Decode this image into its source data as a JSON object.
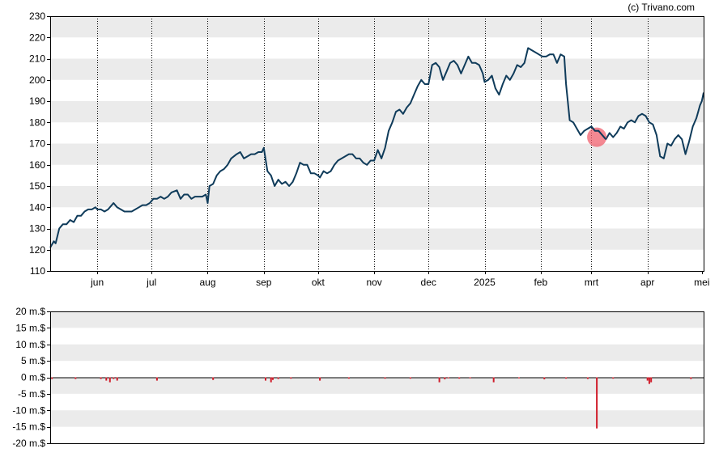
{
  "credit": "(c) Trivano.com",
  "colors": {
    "price_line": "#0f3b5a",
    "band": "#ebebeb",
    "volume_bar": "#d01c2a",
    "marker": "#f0606e",
    "axis": "#000000"
  },
  "chart_data": [
    {
      "type": "line",
      "name": "price-chart",
      "ylim": [
        110,
        230
      ],
      "yticks": [
        "110",
        "120",
        "130",
        "140",
        "150",
        "160",
        "170",
        "180",
        "190",
        "200",
        "210",
        "220",
        "230"
      ],
      "yticks_values": [
        110,
        120,
        130,
        140,
        150,
        160,
        170,
        180,
        190,
        200,
        210,
        220,
        230
      ],
      "xticks": [
        {
          "label": "jun",
          "pos": 26
        },
        {
          "label": "jul",
          "pos": 56
        },
        {
          "label": "aug",
          "pos": 87
        },
        {
          "label": "sep",
          "pos": 118
        },
        {
          "label": "okt",
          "pos": 148
        },
        {
          "label": "nov",
          "pos": 179
        },
        {
          "label": "dec",
          "pos": 209
        },
        {
          "label": "2025",
          "pos": 240
        },
        {
          "label": "feb",
          "pos": 271
        },
        {
          "label": "mrt",
          "pos": 299
        },
        {
          "label": "apr",
          "pos": 330
        },
        {
          "label": "mei",
          "pos": 360
        }
      ],
      "xlim": [
        0,
        361
      ],
      "grid": true,
      "points": [
        [
          0,
          121
        ],
        [
          2,
          124
        ],
        [
          3,
          123
        ],
        [
          5,
          130
        ],
        [
          7,
          132
        ],
        [
          9,
          132
        ],
        [
          11,
          134
        ],
        [
          13,
          133
        ],
        [
          15,
          136
        ],
        [
          17,
          136
        ],
        [
          19,
          138
        ],
        [
          21,
          139
        ],
        [
          23,
          139
        ],
        [
          25,
          140
        ],
        [
          26,
          139
        ],
        [
          28,
          139
        ],
        [
          30,
          138
        ],
        [
          32,
          139
        ],
        [
          35,
          142
        ],
        [
          37,
          140
        ],
        [
          39,
          139
        ],
        [
          41,
          138
        ],
        [
          43,
          138
        ],
        [
          45,
          138
        ],
        [
          47,
          139
        ],
        [
          49,
          140
        ],
        [
          51,
          141
        ],
        [
          53,
          141
        ],
        [
          55,
          142
        ],
        [
          57,
          144
        ],
        [
          59,
          144
        ],
        [
          61,
          145
        ],
        [
          63,
          144
        ],
        [
          65,
          145
        ],
        [
          67,
          147
        ],
        [
          70,
          148
        ],
        [
          72,
          144
        ],
        [
          74,
          146
        ],
        [
          76,
          146
        ],
        [
          78,
          144
        ],
        [
          80,
          145
        ],
        [
          82,
          145
        ],
        [
          84,
          145
        ],
        [
          86,
          146
        ],
        [
          87,
          142
        ],
        [
          88,
          150
        ],
        [
          90,
          151
        ],
        [
          92,
          155
        ],
        [
          94,
          157
        ],
        [
          96,
          158
        ],
        [
          98,
          160
        ],
        [
          100,
          163
        ],
        [
          103,
          165
        ],
        [
          105,
          166
        ],
        [
          107,
          163
        ],
        [
          109,
          164
        ],
        [
          111,
          165
        ],
        [
          113,
          165
        ],
        [
          115,
          166
        ],
        [
          117,
          166
        ],
        [
          118,
          168
        ],
        [
          120,
          157
        ],
        [
          122,
          155
        ],
        [
          124,
          150
        ],
        [
          126,
          153
        ],
        [
          128,
          151
        ],
        [
          130,
          152
        ],
        [
          132,
          150
        ],
        [
          134,
          152
        ],
        [
          136,
          156
        ],
        [
          138,
          161
        ],
        [
          140,
          160
        ],
        [
          142,
          160
        ],
        [
          144,
          156
        ],
        [
          146,
          156
        ],
        [
          148,
          155
        ],
        [
          149,
          154
        ],
        [
          151,
          157
        ],
        [
          153,
          156
        ],
        [
          155,
          157
        ],
        [
          157,
          160
        ],
        [
          159,
          162
        ],
        [
          161,
          163
        ],
        [
          163,
          164
        ],
        [
          165,
          165
        ],
        [
          167,
          165
        ],
        [
          169,
          163
        ],
        [
          171,
          163
        ],
        [
          173,
          161
        ],
        [
          175,
          160
        ],
        [
          177,
          162
        ],
        [
          179,
          162
        ],
        [
          181,
          167
        ],
        [
          183,
          163
        ],
        [
          185,
          168
        ],
        [
          187,
          176
        ],
        [
          189,
          180
        ],
        [
          191,
          185
        ],
        [
          193,
          186
        ],
        [
          195,
          184
        ],
        [
          197,
          187
        ],
        [
          199,
          189
        ],
        [
          201,
          193
        ],
        [
          203,
          197
        ],
        [
          205,
          200
        ],
        [
          207,
          198
        ],
        [
          209,
          198
        ],
        [
          211,
          207
        ],
        [
          213,
          208
        ],
        [
          215,
          206
        ],
        [
          217,
          200
        ],
        [
          219,
          204
        ],
        [
          221,
          208
        ],
        [
          223,
          209
        ],
        [
          225,
          207
        ],
        [
          227,
          203
        ],
        [
          229,
          207
        ],
        [
          231,
          211
        ],
        [
          233,
          208
        ],
        [
          235,
          208
        ],
        [
          237,
          207
        ],
        [
          239,
          203
        ],
        [
          240,
          199
        ],
        [
          242,
          200
        ],
        [
          244,
          202
        ],
        [
          246,
          196
        ],
        [
          248,
          193
        ],
        [
          250,
          198
        ],
        [
          252,
          202
        ],
        [
          254,
          200
        ],
        [
          256,
          203
        ],
        [
          258,
          207
        ],
        [
          260,
          206
        ],
        [
          262,
          208
        ],
        [
          264,
          215
        ],
        [
          266,
          214
        ],
        [
          268,
          213
        ],
        [
          270,
          212
        ],
        [
          272,
          211
        ],
        [
          274,
          211
        ],
        [
          276,
          212
        ],
        [
          278,
          212
        ],
        [
          280,
          208
        ],
        [
          282,
          212
        ],
        [
          284,
          211
        ],
        [
          285,
          198
        ],
        [
          287,
          181
        ],
        [
          289,
          180
        ],
        [
          291,
          177
        ],
        [
          293,
          174
        ],
        [
          295,
          176
        ],
        [
          297,
          177
        ],
        [
          299,
          178
        ],
        [
          301,
          176
        ],
        [
          303,
          176
        ],
        [
          305,
          174
        ],
        [
          307,
          172
        ],
        [
          309,
          175
        ],
        [
          311,
          173
        ],
        [
          313,
          175
        ],
        [
          315,
          178
        ],
        [
          317,
          177
        ],
        [
          319,
          180
        ],
        [
          321,
          181
        ],
        [
          323,
          180
        ],
        [
          325,
          183
        ],
        [
          327,
          184
        ],
        [
          329,
          183
        ],
        [
          331,
          180
        ],
        [
          333,
          179
        ],
        [
          335,
          174
        ],
        [
          337,
          164
        ],
        [
          339,
          163
        ],
        [
          341,
          170
        ],
        [
          343,
          169
        ],
        [
          345,
          172
        ],
        [
          347,
          174
        ],
        [
          349,
          172
        ],
        [
          351,
          165
        ],
        [
          353,
          171
        ],
        [
          355,
          178
        ],
        [
          357,
          182
        ],
        [
          359,
          188
        ],
        [
          360,
          190
        ],
        [
          361,
          194
        ]
      ],
      "marker": {
        "x": 302,
        "y": 173
      }
    },
    {
      "type": "bar",
      "name": "volume-chart",
      "ylim": [
        -20,
        20
      ],
      "yticks": [
        "20 m.$",
        "15 m.$",
        "10 m.$",
        "5 m.$",
        "0 m.$",
        "-5 m.$",
        "-10 m.$",
        "-15 m.$",
        "-20 m.$"
      ],
      "yticks_values": [
        20,
        15,
        10,
        5,
        0,
        -5,
        -10,
        -15,
        -20
      ],
      "xlim": [
        0,
        361
      ],
      "grid": true,
      "bars": [
        [
          1,
          -0.5
        ],
        [
          14,
          -0.5
        ],
        [
          28,
          -0.5
        ],
        [
          31,
          -1
        ],
        [
          33,
          -1.5
        ],
        [
          35,
          -0.5
        ],
        [
          37,
          -1
        ],
        [
          59,
          -1
        ],
        [
          90,
          -0.8
        ],
        [
          119,
          -1
        ],
        [
          122,
          -1.5
        ],
        [
          123,
          -0.8
        ],
        [
          126,
          -0.5
        ],
        [
          133,
          -0.4
        ],
        [
          149,
          -1
        ],
        [
          165,
          -0.4
        ],
        [
          185,
          -0.4
        ],
        [
          199,
          -0.4
        ],
        [
          215,
          -1.5
        ],
        [
          218,
          -0.6
        ],
        [
          220,
          -0.3
        ],
        [
          226,
          -0.4
        ],
        [
          232,
          -0.3
        ],
        [
          245,
          -1.5
        ],
        [
          259,
          -0.3
        ],
        [
          273,
          -0.6
        ],
        [
          285,
          -0.4
        ],
        [
          297,
          -0.5
        ],
        [
          302,
          -15.5
        ],
        [
          311,
          -0.4
        ],
        [
          330,
          -1
        ],
        [
          331,
          -2
        ],
        [
          332,
          -1.5
        ],
        [
          354,
          -0.5
        ]
      ]
    }
  ]
}
